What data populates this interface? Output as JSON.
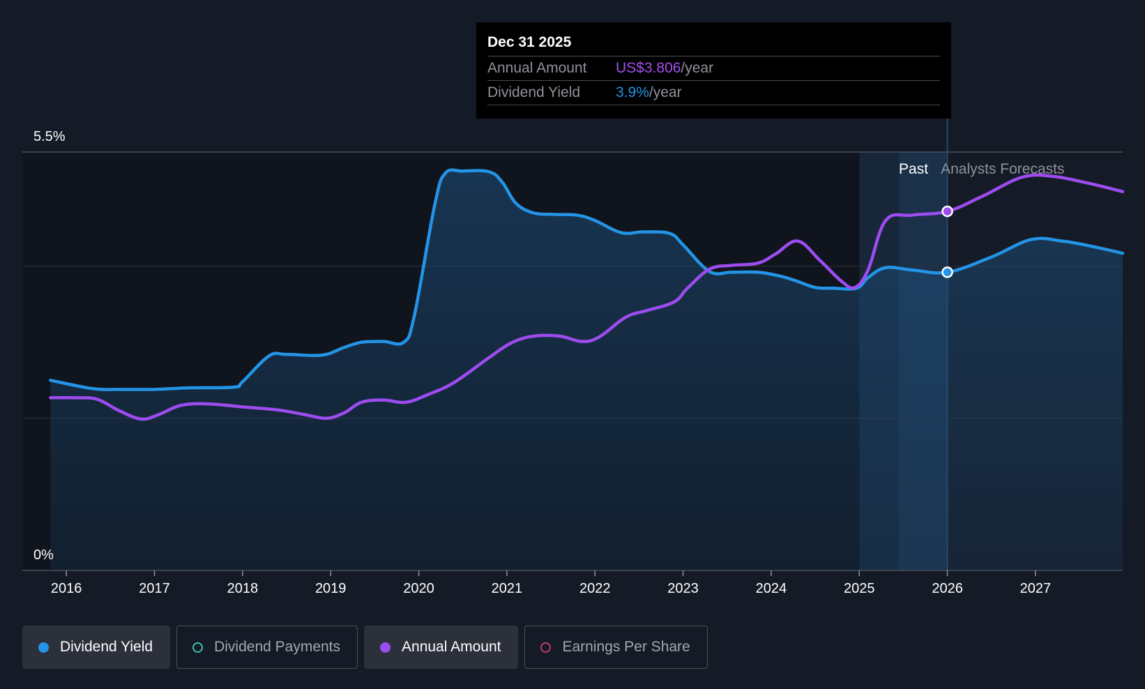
{
  "colors": {
    "yield": "#2394e6",
    "annual": "#9d4cf0",
    "payments": "#3fbfb0",
    "eps": "#c03a6a",
    "background": "#151b26"
  },
  "tooltip": {
    "date": "Dec 31 2025",
    "annual_label": "Annual Amount",
    "annual_value": "US$3.806",
    "annual_unit": "/year",
    "yield_label": "Dividend Yield",
    "yield_value": "3.9%",
    "yield_unit": "/year"
  },
  "regions": {
    "past_label": "Past",
    "forecast_label": "Analysts Forecasts"
  },
  "legend": [
    {
      "label": "Dividend Yield",
      "color": "#2394e6",
      "active": true,
      "filled": true
    },
    {
      "label": "Dividend Payments",
      "color": "#3fbfb0",
      "active": false,
      "filled": false
    },
    {
      "label": "Annual Amount",
      "color": "#9d4cf0",
      "active": true,
      "filled": true
    },
    {
      "label": "Earnings Per Share",
      "color": "#c03a6a",
      "active": false,
      "filled": false
    }
  ],
  "chart_data": {
    "type": "line",
    "y_tick_labels": [
      "5.5%",
      "0%"
    ],
    "ylim": [
      0,
      5.5
    ],
    "xlim": [
      2015.5,
      2027.99
    ],
    "x_ticks": [
      2016,
      2017,
      2018,
      2019,
      2020,
      2021,
      2022,
      2023,
      2024,
      2025,
      2026,
      2027
    ],
    "past_end": 2025.0,
    "forecast_band_start": 2025.45,
    "forecast_start": 2026.0,
    "highlight_x": 2026.0,
    "grid": true,
    "series": [
      {
        "name": "Dividend Yield",
        "area": true,
        "points": [
          [
            2015.82,
            2.5
          ],
          [
            2016.3,
            2.39
          ],
          [
            2016.6,
            2.38
          ],
          [
            2017.0,
            2.38
          ],
          [
            2017.4,
            2.4
          ],
          [
            2017.9,
            2.41
          ],
          [
            2018.0,
            2.48
          ],
          [
            2018.3,
            2.82
          ],
          [
            2018.5,
            2.84
          ],
          [
            2018.9,
            2.83
          ],
          [
            2019.15,
            2.93
          ],
          [
            2019.35,
            3.0
          ],
          [
            2019.6,
            3.01
          ],
          [
            2019.83,
            3.0
          ],
          [
            2019.95,
            3.35
          ],
          [
            2020.18,
            4.8
          ],
          [
            2020.3,
            5.22
          ],
          [
            2020.5,
            5.25
          ],
          [
            2020.8,
            5.24
          ],
          [
            2020.95,
            5.1
          ],
          [
            2021.1,
            4.83
          ],
          [
            2021.3,
            4.7
          ],
          [
            2021.55,
            4.68
          ],
          [
            2021.8,
            4.67
          ],
          [
            2022.0,
            4.6
          ],
          [
            2022.3,
            4.44
          ],
          [
            2022.55,
            4.45
          ],
          [
            2022.85,
            4.43
          ],
          [
            2023.0,
            4.28
          ],
          [
            2023.3,
            3.93
          ],
          [
            2023.55,
            3.92
          ],
          [
            2023.85,
            3.92
          ],
          [
            2024.1,
            3.87
          ],
          [
            2024.3,
            3.8
          ],
          [
            2024.5,
            3.72
          ],
          [
            2024.7,
            3.71
          ],
          [
            2024.97,
            3.71
          ],
          [
            2025.1,
            3.85
          ],
          [
            2025.3,
            3.98
          ],
          [
            2025.6,
            3.95
          ],
          [
            2026.0,
            3.92
          ],
          [
            2026.5,
            4.12
          ],
          [
            2026.95,
            4.35
          ],
          [
            2027.3,
            4.33
          ],
          [
            2027.6,
            4.27
          ],
          [
            2027.99,
            4.17
          ]
        ]
      },
      {
        "name": "Annual Amount",
        "area": false,
        "points": [
          [
            2015.82,
            2.27
          ],
          [
            2016.1,
            2.27
          ],
          [
            2016.35,
            2.25
          ],
          [
            2016.6,
            2.1
          ],
          [
            2016.85,
            1.99
          ],
          [
            2017.05,
            2.05
          ],
          [
            2017.3,
            2.17
          ],
          [
            2017.6,
            2.19
          ],
          [
            2018.0,
            2.15
          ],
          [
            2018.4,
            2.11
          ],
          [
            2018.7,
            2.05
          ],
          [
            2018.95,
            2.0
          ],
          [
            2019.15,
            2.07
          ],
          [
            2019.35,
            2.21
          ],
          [
            2019.6,
            2.24
          ],
          [
            2019.85,
            2.21
          ],
          [
            2020.1,
            2.31
          ],
          [
            2020.4,
            2.47
          ],
          [
            2020.8,
            2.8
          ],
          [
            2021.05,
            2.99
          ],
          [
            2021.3,
            3.08
          ],
          [
            2021.6,
            3.08
          ],
          [
            2021.85,
            3.01
          ],
          [
            2022.05,
            3.07
          ],
          [
            2022.35,
            3.33
          ],
          [
            2022.6,
            3.42
          ],
          [
            2022.9,
            3.53
          ],
          [
            2023.05,
            3.71
          ],
          [
            2023.3,
            3.96
          ],
          [
            2023.55,
            4.01
          ],
          [
            2023.85,
            4.04
          ],
          [
            2024.05,
            4.16
          ],
          [
            2024.3,
            4.33
          ],
          [
            2024.55,
            4.08
          ],
          [
            2024.8,
            3.8
          ],
          [
            2024.95,
            3.72
          ],
          [
            2025.1,
            3.95
          ],
          [
            2025.3,
            4.6
          ],
          [
            2025.6,
            4.67
          ],
          [
            2026.0,
            4.72
          ],
          [
            2026.4,
            4.92
          ],
          [
            2026.85,
            5.17
          ],
          [
            2027.2,
            5.18
          ],
          [
            2027.6,
            5.09
          ],
          [
            2027.99,
            4.98
          ]
        ]
      }
    ],
    "highlight_values": {
      "yield": 3.92,
      "annual": 4.72
    }
  }
}
